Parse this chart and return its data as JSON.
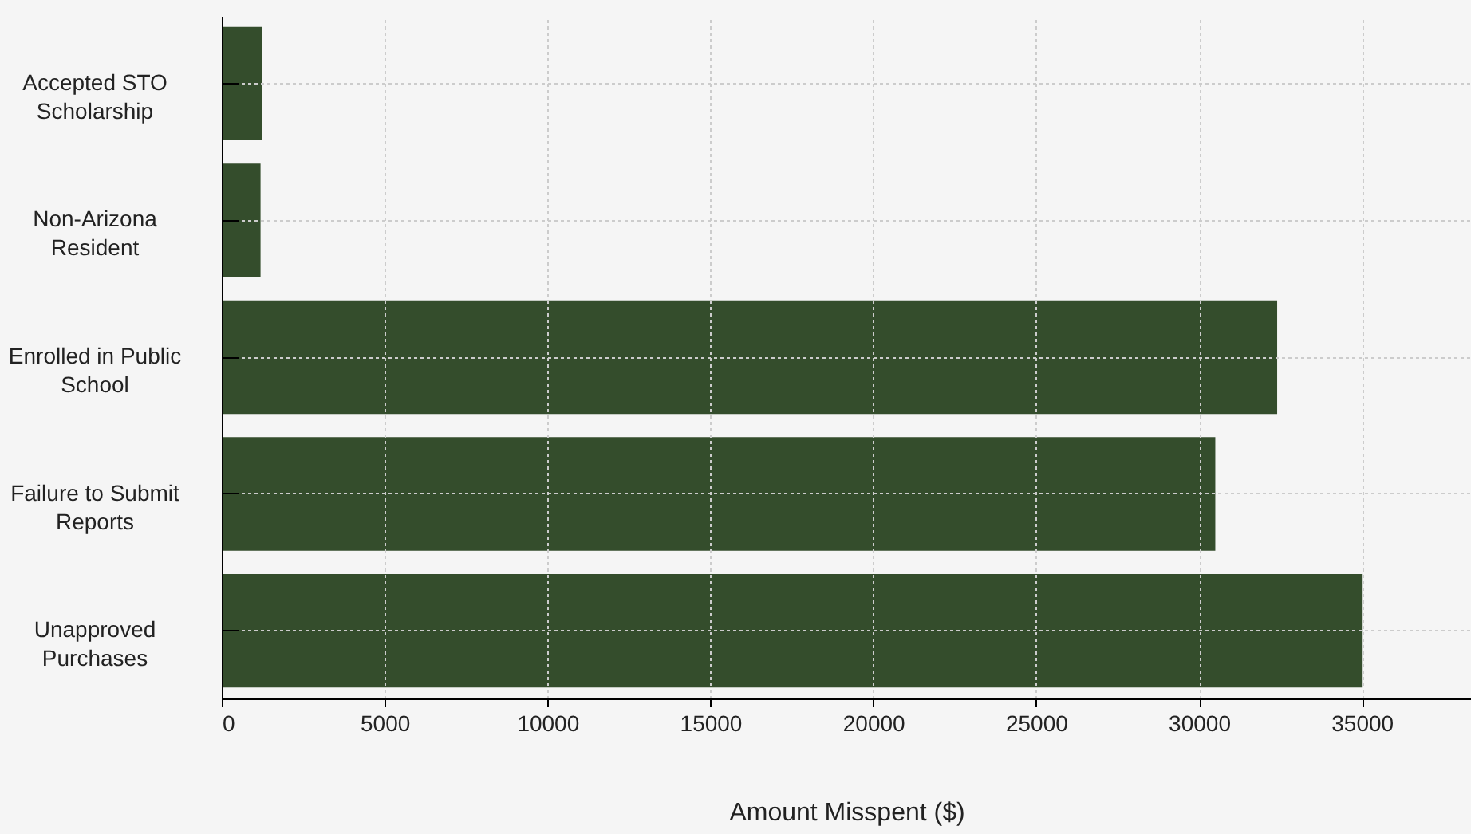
{
  "chart_data": {
    "type": "bar",
    "orientation": "horizontal",
    "xlabel": "Amount Misspent ($)",
    "categories": [
      "Accepted STO Scholarship",
      "Non-Arizona Resident",
      "Enrolled in Public School",
      "Failure to Submit Reports",
      "Unapproved Purchases"
    ],
    "values": [
      1240,
      1190,
      32400,
      30500,
      35000
    ],
    "color": "#344d2c",
    "xlim": [
      0,
      38350
    ],
    "xticks": [
      0,
      5000,
      10000,
      15000,
      20000,
      25000,
      30000,
      35000
    ],
    "grid": true
  }
}
